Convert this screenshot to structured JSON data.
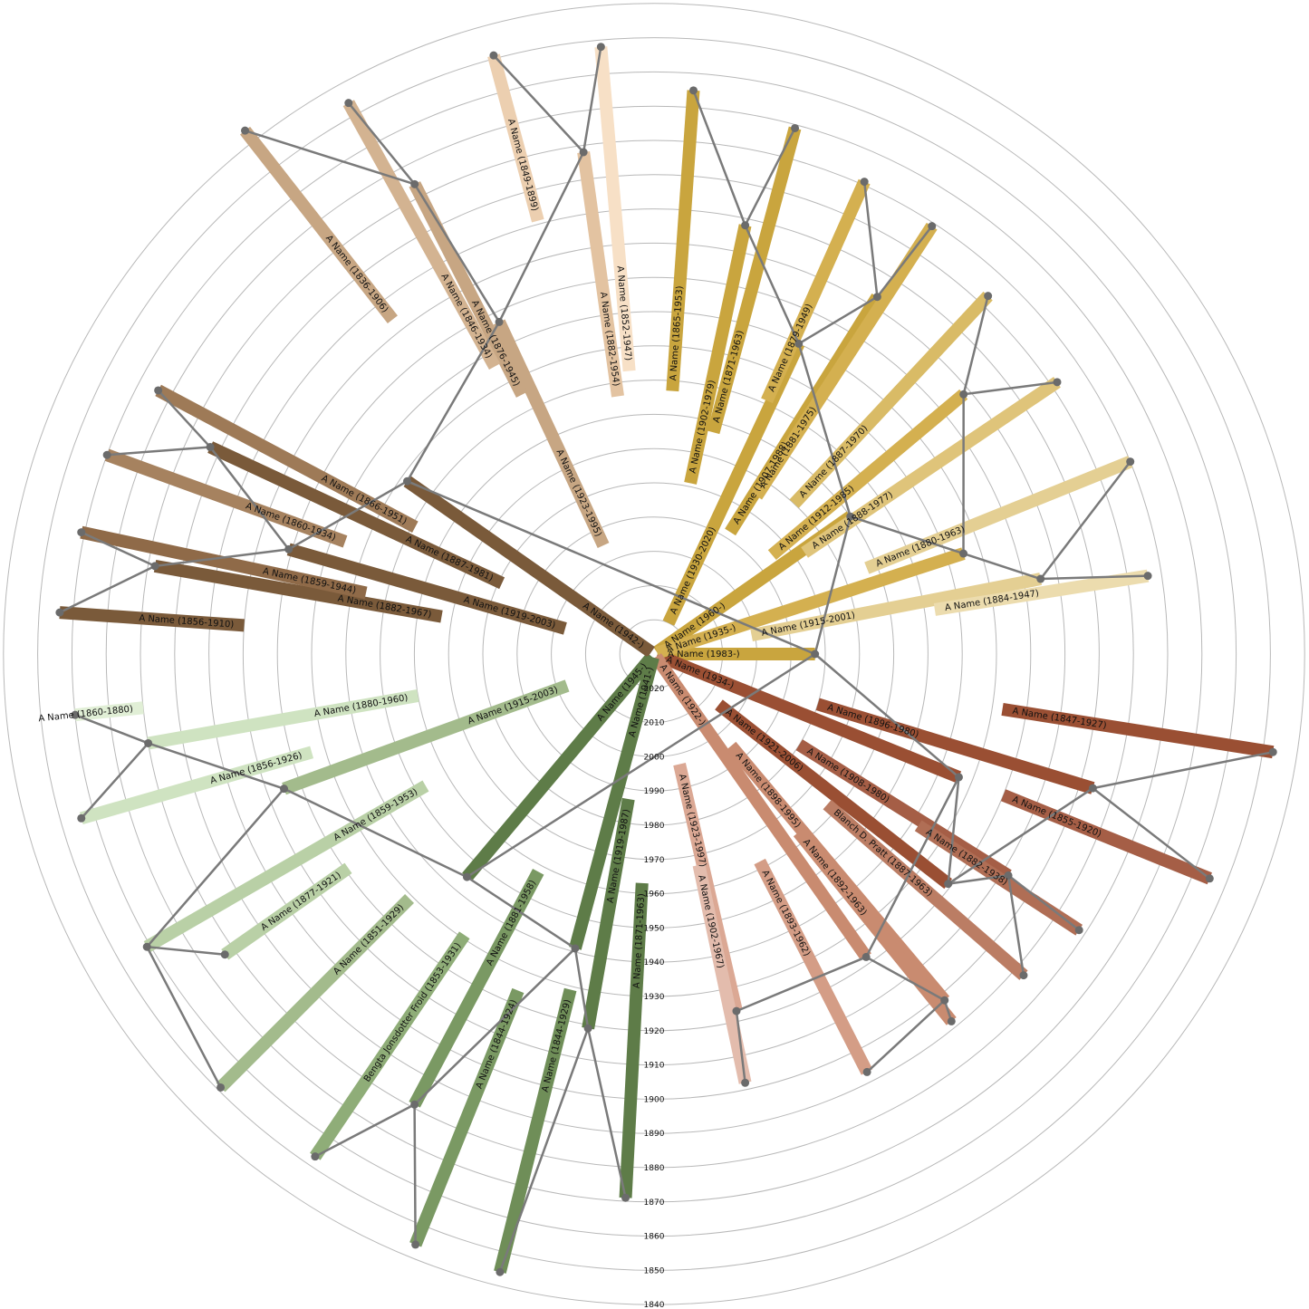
{
  "year_axis": {
    "now": 2030,
    "min": 1840,
    "ticks": [
      2020,
      2010,
      2000,
      1990,
      1980,
      1970,
      1960,
      1950,
      1940,
      1930,
      1920,
      1910,
      1900,
      1890,
      1880,
      1870,
      1860,
      1850,
      1840
    ]
  },
  "colors": {
    "ring": "#b8b8b8",
    "link": "#7a7a7a",
    "node": "#6b6b6b"
  },
  "people": [
    {
      "id": "root",
      "label": "A Name (1983-)",
      "birth": 1983,
      "death": null,
      "angle": 0,
      "color": "#c9a53e"
    },
    {
      "id": "p1",
      "parent": "root",
      "label": "A Name (1960-)",
      "birth": 1960,
      "death": null,
      "angle": -35,
      "color": "#c9a53e"
    },
    {
      "id": "p2",
      "parent": "root",
      "label": "A Name (1934-)",
      "birth": 1934,
      "death": null,
      "angle": 22,
      "color": "#9a4f33"
    },
    {
      "id": "a1",
      "parent": "p1",
      "label": "A Name (1930-2020)",
      "birth": 1930,
      "death": 2020,
      "angle": -65,
      "color": "#c9a53e"
    },
    {
      "id": "a2",
      "parent": "p1",
      "label": "A Name (1935-)",
      "birth": 1935,
      "death": null,
      "angle": -18,
      "color": "#d4b050"
    },
    {
      "id": "a3",
      "parent": "p2",
      "label": "A Name (1921-2006)",
      "birth": 1921,
      "death": 2006,
      "angle": 38,
      "color": "#9a4f33"
    },
    {
      "id": "a4",
      "parent": "p2",
      "label": "A Name (1922-)",
      "birth": 1922,
      "death": null,
      "angle": 55,
      "color": "#c98b70"
    },
    {
      "id": "b1",
      "parent": "a1",
      "label": "A Name (1902-1979)",
      "birth": 1902,
      "death": 1979,
      "angle": -78,
      "color": "#c9a53e"
    },
    {
      "id": "b2",
      "parent": "a1",
      "label": "A Name (1907-1988)",
      "birth": 1907,
      "death": 1988,
      "angle": -58,
      "color": "#c9a53e"
    },
    {
      "id": "b3",
      "parent": "a2",
      "label": "A Name (1912-1985)",
      "birth": 1912,
      "death": 1985,
      "angle": -40,
      "color": "#d4b050"
    },
    {
      "id": "b4",
      "parent": "a2",
      "label": "A Name (1915-2001)",
      "birth": 1915,
      "death": 2001,
      "angle": -11,
      "color": "#e4cf93"
    },
    {
      "id": "b5",
      "parent": "a3",
      "label": "A Name (1896-1980)",
      "birth": 1896,
      "death": 1980,
      "angle": 17,
      "color": "#9a4f33"
    },
    {
      "id": "b6",
      "parent": "a3",
      "label": "A Name (1908-1980)",
      "birth": 1908,
      "death": 1980,
      "angle": 32,
      "color": "#a55e46"
    },
    {
      "id": "b7",
      "parent": "a4",
      "label": "A Name (1898-1995)",
      "birth": 1898,
      "death": 1995,
      "angle": 50,
      "color": "#c98b70"
    },
    {
      "id": "b8",
      "parent": "a4",
      "label": "A Name (1923-1997)",
      "birth": 1923,
      "death": 1997,
      "angle": 77,
      "color": "#dba894"
    },
    {
      "id": "c1",
      "parent": "b1",
      "label": "A Name (1865-1953)",
      "birth": 1865,
      "death": 1953,
      "angle": -86,
      "color": "#c9a53e"
    },
    {
      "id": "c2",
      "parent": "b1",
      "label": "A Name (1871-1963)",
      "birth": 1871,
      "death": 1963,
      "angle": -75,
      "color": "#c9a53e"
    },
    {
      "id": "c3",
      "parent": "b2",
      "label": "A Name (1879-1949)",
      "birth": 1879,
      "death": 1949,
      "angle": -66,
      "color": "#d4b050"
    },
    {
      "id": "c4",
      "parent": "b2",
      "label": "A Name (1881-1975)",
      "birth": 1881,
      "death": 1975,
      "angle": -57,
      "color": "#d4b050"
    },
    {
      "id": "c5",
      "parent": "b3",
      "label": "A Name (1887-1970)",
      "birth": 1887,
      "death": 1970,
      "angle": -47,
      "color": "#d9bb66"
    },
    {
      "id": "c6",
      "parent": "b3",
      "label": "A Name (1888-1977)",
      "birth": 1888,
      "death": 1977,
      "angle": -34,
      "color": "#dfc47a"
    },
    {
      "id": "c7",
      "parent": "b4",
      "label": "A Name (1880-1963)",
      "birth": 1880,
      "death": 1963,
      "angle": -22,
      "color": "#e4cf93"
    },
    {
      "id": "c8",
      "parent": "b4",
      "label": "A Name (1884-1947)",
      "birth": 1884,
      "death": 1947,
      "angle": -9,
      "color": "#ecdcae"
    },
    {
      "id": "c9",
      "parent": "b5",
      "label": "A Name (1847-1927)",
      "birth": 1847,
      "death": 1927,
      "angle": 9,
      "color": "#9a4f33"
    },
    {
      "id": "c10",
      "parent": "b5",
      "label": "A Name (1855-1920)",
      "birth": 1855,
      "death": 1920,
      "angle": 22,
      "color": "#a55e46"
    },
    {
      "id": "c11",
      "parent": "b6",
      "label": "A Name (1882-1938)",
      "birth": 1882,
      "death": 1938,
      "angle": 33,
      "color": "#b06e55"
    },
    {
      "id": "c12",
      "parent": "b6",
      "label": "Blanch D. Pratt (1887-1963)",
      "birth": 1887,
      "death": 1963,
      "angle": 41,
      "color": "#bb7d64"
    },
    {
      "id": "c13",
      "parent": "b7",
      "label": "A Name (1892-1963)",
      "birth": 1892,
      "death": 1963,
      "angle": 51,
      "color": "#c98b70"
    },
    {
      "id": "c14",
      "parent": "b7",
      "label": "A Name (1893-1962)",
      "birth": 1893,
      "death": 1962,
      "angle": 63,
      "color": "#d49d86"
    },
    {
      "id": "c15",
      "parent": "b8",
      "label": "A Name (1902-1967)",
      "birth": 1902,
      "death": 1967,
      "angle": 78,
      "color": "#e3bcad"
    },
    {
      "id": "p3",
      "parent": "root",
      "label": "A Name (1945-)",
      "birth": 1945,
      "death": null,
      "angle": 130,
      "color": "#5e7c48"
    },
    {
      "id": "p4",
      "parent": "root",
      "label": "A Name (1942-)",
      "birth": 1942,
      "death": null,
      "angle": 215,
      "color": "#7a5a3a"
    },
    {
      "id": "d1",
      "parent": "p3",
      "label": "A Name (1941-)",
      "birth": 1941,
      "death": null,
      "angle": 105,
      "color": "#5e7c48"
    },
    {
      "id": "d2",
      "parent": "p3",
      "label": "A Name (1915-2003)",
      "birth": 1915,
      "death": 2003,
      "angle": 160,
      "color": "#a3bb8c"
    },
    {
      "id": "d3",
      "parent": "p4",
      "label": "A Name (1919-2003)",
      "birth": 1919,
      "death": 2003,
      "angle": 196,
      "color": "#7a5a3a"
    },
    {
      "id": "d4",
      "parent": "p4",
      "label": "A Name (1923-1995)",
      "birth": 1923,
      "death": 1995,
      "angle": 245,
      "color": "#c7a683"
    },
    {
      "id": "e1",
      "parent": "d1",
      "label": "A Name (1919-1987)",
      "birth": 1919,
      "death": 1987,
      "angle": 100,
      "color": "#5e7c48"
    },
    {
      "id": "e2",
      "parent": "d1",
      "label": "A Name (1881-1958)",
      "birth": 1881,
      "death": 1958,
      "angle": 118,
      "color": "#7a9963"
    },
    {
      "id": "e3",
      "parent": "d2",
      "label": "A Name (1859-1953)",
      "birth": 1859,
      "death": 1953,
      "angle": 150,
      "color": "#b9d0a6"
    },
    {
      "id": "e4",
      "parent": "d2",
      "label": "A Name (1880-1960)",
      "birth": 1880,
      "death": 1960,
      "angle": 170,
      "color": "#cfe3c1"
    },
    {
      "id": "e5",
      "parent": "d3",
      "label": "A Name (1887-1981)",
      "birth": 1887,
      "death": 1981,
      "angle": 205,
      "color": "#7a5a3a"
    },
    {
      "id": "e6",
      "parent": "d3",
      "label": "A Name (1882-1967)",
      "birth": 1882,
      "death": 1967,
      "angle": 190,
      "color": "#7a5a3a"
    },
    {
      "id": "e7",
      "parent": "d4",
      "label": "A Name (1876-1945)",
      "birth": 1876,
      "death": 1945,
      "angle": 243,
      "color": "#c7a683"
    },
    {
      "id": "e8",
      "parent": "d4",
      "label": "A Name (1882-1954)",
      "birth": 1882,
      "death": 1954,
      "angle": 262,
      "color": "#e3c3a1"
    },
    {
      "id": "f1",
      "parent": "e1",
      "label": "A Name (1871-1963)",
      "birth": 1871,
      "death": 1963,
      "angle": 93,
      "color": "#5e7c48"
    },
    {
      "id": "f2",
      "parent": "e1",
      "label": "A Name (1844-1929)",
      "birth": 1844,
      "death": 1929,
      "angle": 104,
      "color": "#6f8e58"
    },
    {
      "id": "f3",
      "parent": "e2",
      "label": "A Name (1844-1924)",
      "birth": 1844,
      "death": 1924,
      "angle": 112,
      "color": "#7a9963"
    },
    {
      "id": "f4",
      "parent": "e2",
      "label": "Bengta Jonsdotter Froid (1853-1931)",
      "birth": 1853,
      "death": 1931,
      "angle": 124,
      "color": "#8fad78"
    },
    {
      "id": "f5",
      "parent": "e3",
      "label": "A Name (1851-1929)",
      "birth": 1851,
      "death": 1929,
      "angle": 135,
      "color": "#a3bb8c"
    },
    {
      "id": "f6",
      "parent": "e3",
      "label": "A Name (1877-1921)",
      "birth": 1877,
      "death": 1921,
      "angle": 145,
      "color": "#b9d0a6"
    },
    {
      "id": "f7",
      "parent": "e4",
      "label": "A Name (1856-1926)",
      "birth": 1856,
      "death": 1926,
      "angle": 164,
      "color": "#cfe3c1"
    },
    {
      "id": "f8",
      "parent": "e4",
      "label": "A Name (1860-1880)",
      "birth": 1860,
      "death": 1880,
      "angle": 174,
      "color": "#e1efd6"
    },
    {
      "id": "f9",
      "parent": "e5",
      "label": "A Name (1866-1951)",
      "birth": 1866,
      "death": 1951,
      "angle": 208,
      "color": "#9e7a57"
    },
    {
      "id": "f10",
      "parent": "e5",
      "label": "A Name (1860-1934)",
      "birth": 1860,
      "death": 1934,
      "angle": 200,
      "color": "#a6825f"
    },
    {
      "id": "f11",
      "parent": "e6",
      "label": "A Name (1859-1944)",
      "birth": 1859,
      "death": 1944,
      "angle": 192,
      "color": "#8f6a48"
    },
    {
      "id": "f12",
      "parent": "e6",
      "label": "A Name (1856-1910)",
      "birth": 1856,
      "death": 1910,
      "angle": 184,
      "color": "#7a5a3a"
    },
    {
      "id": "f13",
      "parent": "e7",
      "label": "A Name (1836-1906)",
      "birth": 1836,
      "death": 1906,
      "angle": 232,
      "color": "#c7a683"
    },
    {
      "id": "f14",
      "parent": "e7",
      "label": "A Name (1846-1934)",
      "birth": 1846,
      "death": 1934,
      "angle": 241,
      "color": "#d3b391"
    },
    {
      "id": "f15",
      "parent": "e8",
      "label": "A Name (1849-1899)",
      "birth": 1849,
      "death": 1899,
      "angle": 255,
      "color": "#eccfb0"
    },
    {
      "id": "f16",
      "parent": "e8",
      "label": "A Name (1852-1947)",
      "birth": 1852,
      "death": 1947,
      "angle": 265,
      "color": "#f7e0c6"
    }
  ]
}
